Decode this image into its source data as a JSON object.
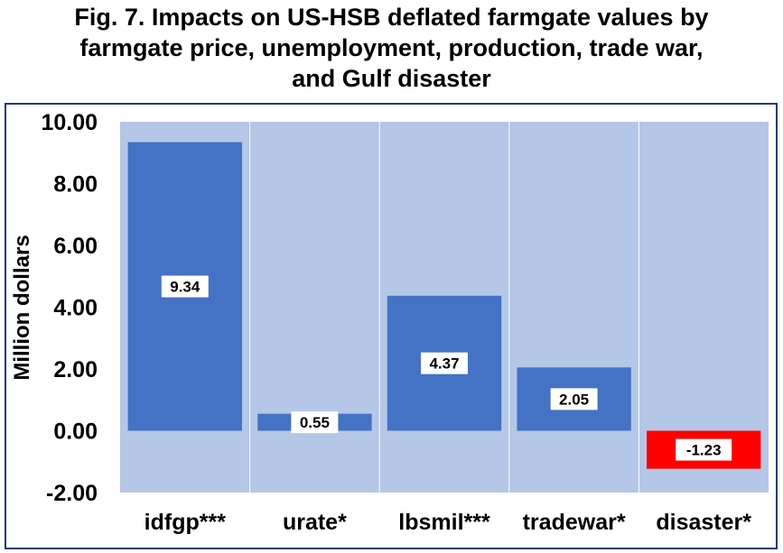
{
  "title_lines": [
    "Fig. 7. Impacts on US-HSB deflated farmgate values by",
    "farmgate price, unemployment, production, trade war,",
    "and Gulf disaster"
  ],
  "colors": {
    "frame": "#1f3a7a",
    "plot_bg": "#b4c7e7",
    "bar_positive": "#4472c4",
    "bar_negative": "#ff0000",
    "label_bg": "#ffffff"
  },
  "chart_data": {
    "type": "bar",
    "title": "Fig. 7. Impacts on US-HSB deflated farmgate values by farmgate price, unemployment, production, trade war, and Gulf disaster",
    "categories": [
      "idfgp***",
      "urate*",
      "lbsmil***",
      "tradewar*",
      "disaster*"
    ],
    "values": [
      9.34,
      0.55,
      4.37,
      2.05,
      -1.23
    ],
    "value_labels": [
      "9.34",
      "0.55",
      "4.37",
      "2.05",
      "-1.23"
    ],
    "xlabel": "",
    "ylabel": "Million dollars",
    "ylim": [
      -2,
      10
    ],
    "yticks": [
      10,
      8,
      6,
      4,
      2,
      0,
      -2
    ],
    "ytick_labels": [
      "10.00",
      "8.00",
      "6.00",
      "4.00",
      "2.00",
      "0.00",
      "-2.00"
    ],
    "legend": "none",
    "grid": "vertical separators between categories"
  }
}
